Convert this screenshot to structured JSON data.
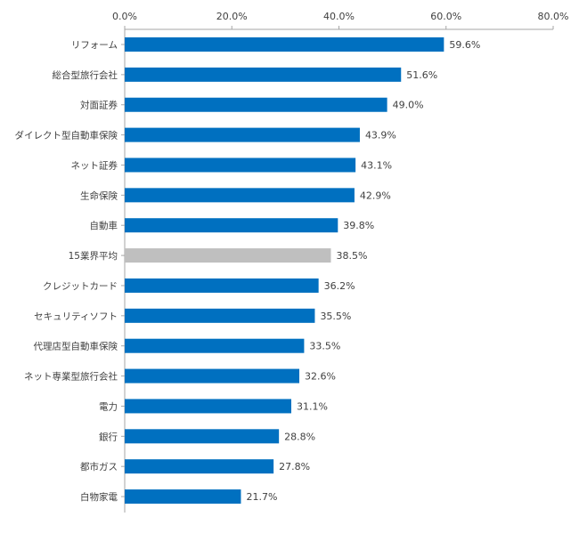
{
  "chart_data": {
    "type": "bar",
    "orientation": "horizontal",
    "x_axis_position": "top",
    "xlim": [
      0,
      80
    ],
    "xticks": [
      "0.0%",
      "20.0%",
      "40.0%",
      "60.0%",
      "80.0%"
    ],
    "grid": false,
    "colors": {
      "default": "#0070c0",
      "highlight": "#bfbfbf"
    },
    "categories": [
      "リフォーム",
      "総合型旅行会社",
      "対面証券",
      "ダイレクト型自動車保険",
      "ネット証券",
      "生命保険",
      "自動車",
      "15業界平均",
      "クレジットカード",
      "セキュリティソフト",
      "代理店型自動車保険",
      "ネット専業型旅行会社",
      "電力",
      "銀行",
      "都市ガス",
      "白物家電"
    ],
    "values": [
      59.6,
      51.6,
      49.0,
      43.9,
      43.1,
      42.9,
      39.8,
      38.5,
      36.2,
      35.5,
      33.5,
      32.6,
      31.1,
      28.8,
      27.8,
      21.7
    ],
    "value_labels": [
      "59.6%",
      "51.6%",
      "49.0%",
      "43.9%",
      "43.1%",
      "42.9%",
      "39.8%",
      "38.5%",
      "36.2%",
      "35.5%",
      "33.5%",
      "32.6%",
      "31.1%",
      "28.8%",
      "27.8%",
      "21.7%"
    ],
    "highlighted_category": "15業界平均"
  }
}
